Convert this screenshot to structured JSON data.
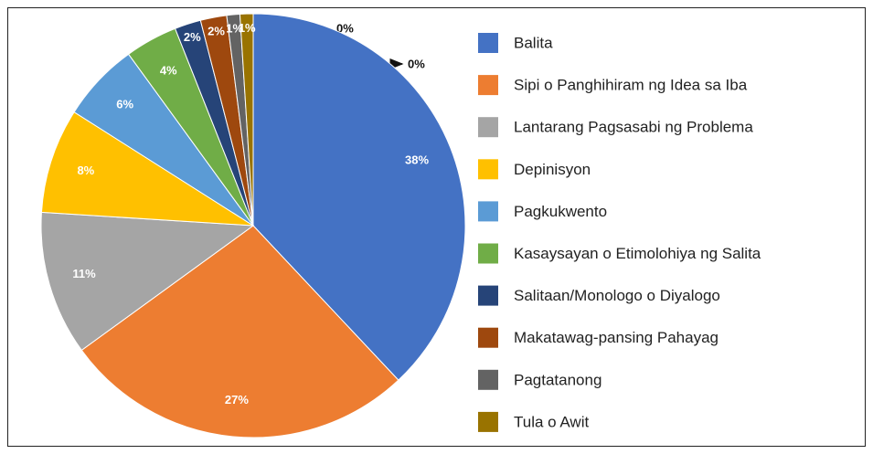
{
  "chart_data": {
    "type": "pie",
    "categories": [
      "Balita",
      "Sipi o Panghihiram ng Idea sa Iba",
      "Lantarang Pagsasabi ng Problema",
      "Depinisyon",
      "Pagkukwento",
      "Kasaysayan o Etimolohiya ng Salita",
      "Salitaan/Monologo o Diyalogo",
      "Makatawag-pansing Pahayag",
      "Pagtatanong",
      "Tula o Awit"
    ],
    "values": [
      38,
      27,
      11,
      8,
      6,
      4,
      2,
      2,
      1,
      1
    ],
    "value_labels": [
      "38%",
      "27%",
      "11%",
      "8%",
      "6%",
      "4%",
      "2%",
      "2%",
      "1%",
      "1%"
    ],
    "colors": [
      "#4472c4",
      "#ed7d31",
      "#a5a5a5",
      "#ffc000",
      "#5b9bd5",
      "#70ad47",
      "#264478",
      "#9e480e",
      "#636363",
      "#997300"
    ],
    "annotations": [
      "0%",
      "0%"
    ],
    "legend": "right"
  }
}
